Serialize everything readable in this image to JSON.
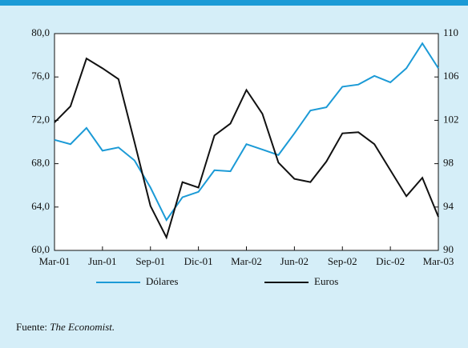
{
  "chart_data": {
    "type": "line",
    "categories": [
      "Mar-01",
      null,
      null,
      "Jun-01",
      null,
      null,
      "Sep-01",
      null,
      null,
      "Dic-01",
      null,
      null,
      "Mar-02",
      null,
      null,
      "Jun-02",
      null,
      null,
      "Sep-02",
      null,
      null,
      "Dic-02",
      null,
      null,
      "Mar-03"
    ],
    "series": [
      {
        "name": "Dólares",
        "color": "#1b9ad6",
        "axis": "y",
        "values": [
          70.2,
          69.8,
          71.3,
          69.2,
          69.5,
          68.3,
          65.8,
          62.8,
          64.9,
          65.4,
          67.4,
          67.3,
          69.8,
          69.3,
          68.8,
          70.8,
          72.9,
          73.2,
          75.1,
          75.3,
          76.1,
          75.5,
          76.8,
          79.1,
          76.8
        ]
      },
      {
        "name": "Euros",
        "color": "#111111",
        "axis": "y2",
        "values": [
          101.8,
          103.3,
          107.7,
          106.8,
          105.8,
          100,
          94.1,
          91.2,
          96.3,
          95.8,
          100.6,
          101.7,
          104.8,
          102.6,
          98.1,
          96.6,
          96.3,
          98.2,
          100.8,
          100.9,
          99.8,
          97.4,
          95,
          96.7,
          93.1
        ]
      }
    ],
    "ylim": [
      60,
      80
    ],
    "yticks": [
      {
        "value": 60,
        "label": "60,0"
      },
      {
        "value": 64,
        "label": "64,0"
      },
      {
        "value": 68,
        "label": "68,0"
      },
      {
        "value": 72,
        "label": "72,0"
      },
      {
        "value": 76,
        "label": "76,0"
      },
      {
        "value": 80,
        "label": "80,0"
      }
    ],
    "y2lim": [
      90,
      110
    ],
    "y2ticks": [
      90,
      94,
      98,
      102,
      106,
      110
    ],
    "legend": "bottom",
    "grid": false,
    "source_label": "Fuente:",
    "source": "The Economist."
  }
}
